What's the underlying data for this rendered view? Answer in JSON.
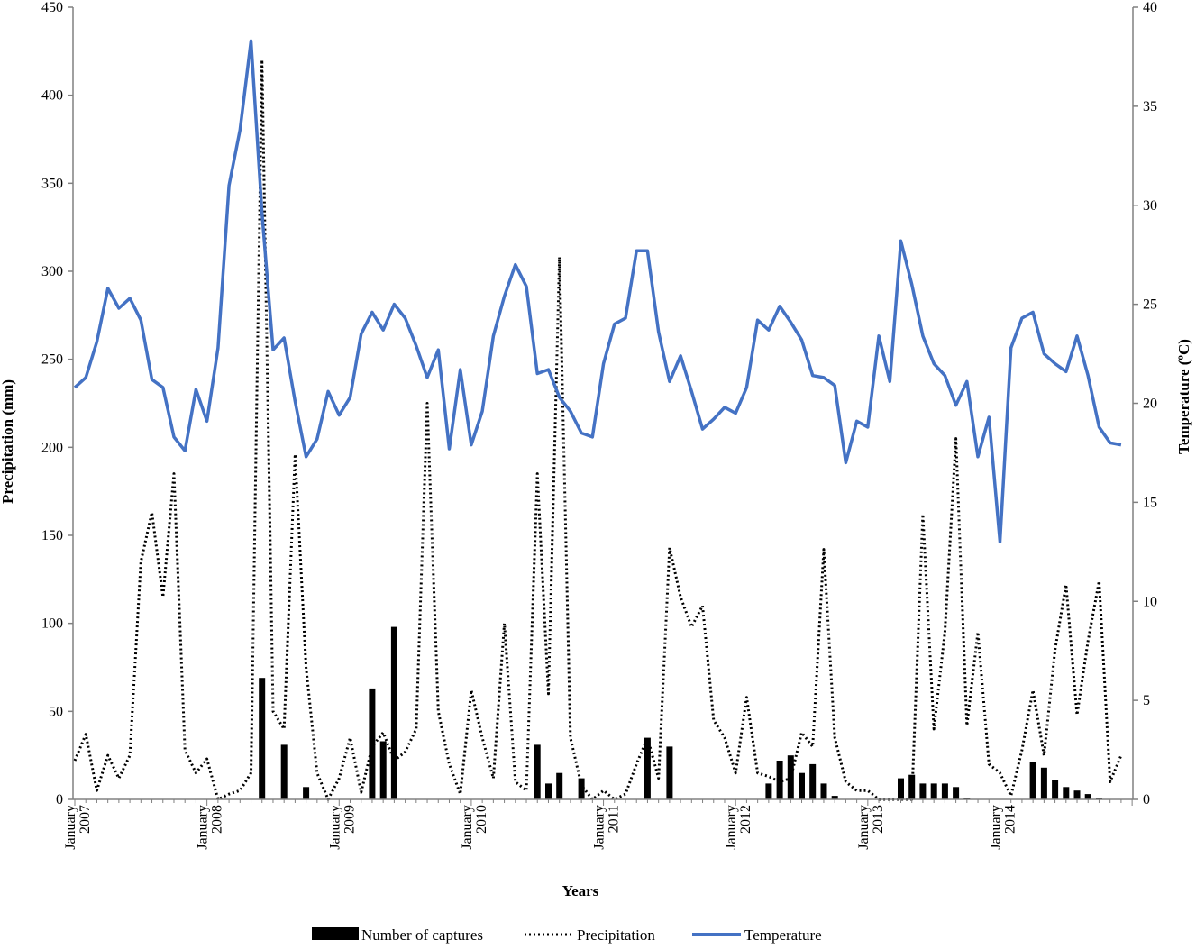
{
  "chart_data": {
    "type": "combo",
    "xlabel": "Years",
    "ylabel_left": "Precipitation (mm)",
    "ylabel_right": "Temperature (ºC)",
    "ylim_left": [
      0,
      450
    ],
    "ylim_right": [
      0,
      40
    ],
    "yticks_left": [
      "0",
      "50",
      "100",
      "150",
      "200",
      "250",
      "300",
      "350",
      "400",
      "450"
    ],
    "yticks_right": [
      "0",
      "5",
      "10",
      "15",
      "20",
      "25",
      "30",
      "35",
      "40"
    ],
    "x_tick_labels": [
      {
        "month": "January",
        "year": "2007",
        "index": 0
      },
      {
        "month": "January",
        "year": "2008",
        "index": 12
      },
      {
        "month": "January",
        "year": "2009",
        "index": 24
      },
      {
        "month": "January",
        "year": "2010",
        "index": 36
      },
      {
        "month": "January",
        "year": "2011",
        "index": 48
      },
      {
        "month": "January",
        "year": "2012",
        "index": 60
      },
      {
        "month": "January",
        "year": "2013",
        "index": 72
      },
      {
        "month": "January",
        "year": "2014",
        "index": 84
      }
    ],
    "months": 96,
    "grid": false,
    "legend_position": "bottom",
    "series": [
      {
        "name": "Number of captures",
        "kind": "bar",
        "axis": "left",
        "color": "#000000",
        "values": [
          0,
          0,
          0,
          0,
          0,
          0,
          0,
          0,
          0,
          0,
          0,
          0,
          0,
          0,
          0,
          0,
          0,
          69,
          0,
          31,
          0,
          7,
          0,
          0,
          0,
          0,
          0,
          63,
          33,
          98,
          0,
          0,
          0,
          0,
          0,
          0,
          0,
          0,
          0,
          0,
          0,
          0,
          31,
          9,
          15,
          0,
          12,
          0,
          0,
          0,
          0,
          0,
          35,
          0,
          30,
          0,
          0,
          0,
          0,
          0,
          0,
          0,
          0,
          9,
          22,
          25,
          15,
          20,
          9,
          2,
          0,
          0,
          0,
          0,
          0,
          12,
          14,
          9,
          9,
          9,
          7,
          1,
          0,
          0,
          0,
          0,
          0,
          21,
          18,
          11,
          7,
          5,
          3,
          1,
          0,
          0
        ]
      },
      {
        "name": "Precipitation",
        "kind": "line",
        "style": "dotted",
        "axis": "left",
        "color": "#000000",
        "values": [
          22,
          37,
          5,
          25,
          12,
          25,
          135,
          163,
          115,
          185,
          28,
          15,
          23,
          0,
          3,
          5,
          15,
          420,
          50,
          40,
          196,
          75,
          15,
          0,
          12,
          35,
          4,
          30,
          38,
          22,
          27,
          40,
          225,
          50,
          20,
          3,
          62,
          35,
          12,
          100,
          10,
          5,
          185,
          60,
          308,
          35,
          8,
          0,
          5,
          0,
          3,
          20,
          35,
          12,
          143,
          115,
          98,
          110,
          45,
          35,
          15,
          58,
          15,
          13,
          10,
          12,
          38,
          30,
          142,
          35,
          10,
          5,
          5,
          0,
          0,
          0,
          0,
          162,
          40,
          95,
          205,
          42,
          95,
          20,
          15,
          2,
          28,
          62,
          25,
          85,
          122,
          48,
          90,
          124,
          10,
          25
        ]
      },
      {
        "name": "Temperature",
        "kind": "line",
        "style": "solid",
        "axis": "right",
        "color": "#4472C4",
        "values": [
          20.8,
          21.3,
          23.1,
          25.8,
          24.8,
          25.3,
          24.2,
          21.2,
          20.8,
          18.3,
          17.6,
          20.7,
          19.1,
          22.8,
          31.0,
          33.8,
          38.3,
          29.6,
          22.7,
          23.3,
          20.1,
          17.3,
          18.2,
          20.6,
          19.4,
          20.3,
          23.5,
          24.6,
          23.7,
          25.0,
          24.3,
          22.9,
          21.3,
          22.7,
          17.7,
          21.7,
          17.9,
          19.6,
          23.4,
          25.4,
          27.0,
          25.9,
          21.5,
          21.7,
          20.3,
          19.6,
          18.5,
          18.3,
          22.0,
          24.0,
          24.3,
          27.7,
          27.7,
          23.6,
          21.1,
          22.4,
          20.6,
          18.7,
          19.2,
          19.8,
          19.5,
          20.8,
          24.2,
          23.7,
          24.9,
          24.1,
          23.2,
          21.4,
          21.3,
          20.9,
          17.0,
          19.1,
          18.8,
          23.4,
          21.1,
          28.2,
          26.0,
          23.4,
          22.0,
          21.4,
          19.9,
          21.1,
          17.3,
          19.3,
          13.0,
          22.8,
          24.3,
          24.6,
          22.5,
          22.0,
          21.6,
          23.4,
          21.4,
          18.8,
          18.0,
          17.9
        ]
      }
    ]
  },
  "legend": {
    "captures_label": "Number of captures",
    "precipitation_label": "Precipitation",
    "temperature_label": "Temperature"
  },
  "colors": {
    "temperature": "#4472C4",
    "bars": "#000000",
    "precipitation": "#000000",
    "axis": "#808080"
  }
}
